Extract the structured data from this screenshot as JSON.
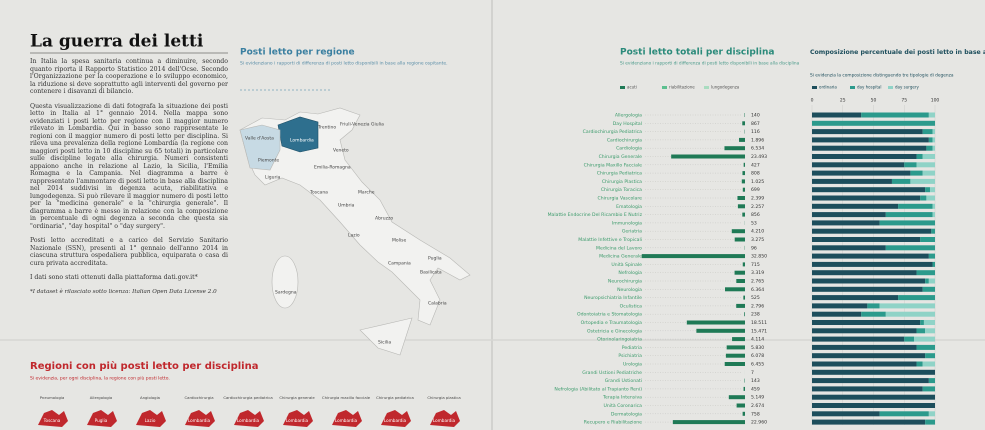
{
  "header": {
    "title": "La guerra dei letti"
  },
  "article": {
    "paragraphs": [
      "In Italia la spesa sanitaria continua a diminuire, secondo quanto riporta il Rapporto Statistico 2014 dell'Ocse. Secondo l'Organizzazione per la cooperazione e lo sviluppo economico, la riduzione si deve soprattutto agli interventi del governo per contenere i disavanzi di bilancio.",
      "Questa visualizzazione di dati fotografa la situazione dei posti letto in Italia al 1° gennaio 2014. Nella mappa sono evidenziati i posti letto per regione con il maggior numero rilevato in Lombardia. Qui in basso sono rappresentate le regioni con il maggior numero di posti letto per disciplina. Si rileva una prevalenza della regione Lombardia (la regione con maggiori posti letto in 10 discipline su 65 totali) in particolare sulle discipline legate alla chirurgia. Numeri consistenti appaiono anche in relazione al Lazio, la Sicilia, l'Emilia Romagna e la Campania. Nel diagramma a barre è rappresentato l'ammontare di posti letto in base alla disciplina nel 2014 suddivisi in degenza acuta, riabilitativa e lungodegenza. Si può rilevare il maggior numero di posti letto per la \"medicina generale\" e la \"chirurgia generale\". Il diagramma a barre è messo in relazione con la composizione in percentuale di ogni degenza a seconda che questa sia \"ordinaria\", \"day hospital\" o \"day surgery\".",
      "Posti letto accreditati e a carico del Servizio Sanitario Nazionale (SSN), presenti al 1° gennaio dell'anno 2014 in ciascuna struttura ospedaliera pubblica, equiparata o casa di cura privata accreditata.",
      "I dati sono stati ottenuti dalla piattaforma dati.gov.it*"
    ],
    "note": "*I dataset è rilasciato sotto licenza: Italian Open Data License 2.0"
  },
  "map": {
    "title": "Posti letto per regione",
    "subtitle": "Si evidenziano i rapporti di differenza di posti letto disponibili in base alla regione ospitante.",
    "regions": [
      "Valle d'Aosta",
      "Piemonte",
      "Lombardia",
      "Liguria",
      "Trentino",
      "Veneto",
      "Friuli-Venezia Giulia",
      "Emilia-Romagna",
      "Toscana",
      "Umbria",
      "Marche",
      "Lazio",
      "Abruzzo",
      "Molise",
      "Campania",
      "Puglia",
      "Basilicata",
      "Calabria",
      "Sicilia",
      "Sardegna"
    ]
  },
  "bottom": {
    "title": "Regioni con più posti letto per disciplina",
    "subtitle": "Si evidenzia, per ogni disciplina, la regione con più posti letto.",
    "items": [
      {
        "discipline": "Pneumologia",
        "region": "Toscana"
      },
      {
        "discipline": "Allergologia",
        "region": "Puglia"
      },
      {
        "discipline": "Angiologia",
        "region": "Lazio"
      },
      {
        "discipline": "Cardiochirurgia",
        "region": "Lombardia"
      },
      {
        "discipline": "Cardiochirurgia pediatrica",
        "region": "Lombardia"
      },
      {
        "discipline": "Chirurgia generale",
        "region": "Lombardia"
      },
      {
        "discipline": "Chirurgia maxillo facciale",
        "region": "Lombardia"
      },
      {
        "discipline": "Chirurgia pediatrica",
        "region": "Lombardia"
      },
      {
        "discipline": "Chirurgia plastica",
        "region": "Lombardia"
      }
    ]
  },
  "chart_data": [
    {
      "type": "hbar",
      "title": "Posti letto totali per disciplina",
      "subtitle": "Si evidenziano i rapporti di differenza di posti letto disponibili in base alla disciplina",
      "legend": [
        {
          "name": "acuti",
          "color": "#1f7a56"
        },
        {
          "name": "riabilitazione",
          "color": "#5cc08f"
        },
        {
          "name": "lungodegenza",
          "color": "#a9dcc0"
        }
      ],
      "color": "#1f7a56",
      "xlim": [
        0,
        35000
      ],
      "categories": [
        "Allergologia",
        "Day Hospital",
        "Cardiochirurgia Pediatrica",
        "Cardiochirurgia",
        "Cardiologia",
        "Chirurgia Generale",
        "Chirurgia Maxillo Facciale",
        "Chirurgia Pediatrica",
        "Chirurgia Plastica",
        "Chirurgia Toracica",
        "Chirurgia Vascolare",
        "Ematologia",
        "Malattie Endocrine Del Ricambio E Nutriz",
        "Immunologia",
        "Geriatria",
        "Malattie Infettive e Tropicali",
        "Medicina del Lavoro",
        "Medicina Generale",
        "Unità Spinale",
        "Nefrologia",
        "Neurochirurgia",
        "Neurologia",
        "Neuropsichiatria Infantile",
        "Oculistica",
        "Odontoiatria e Stomatologia",
        "Ortopedia e Traumatologia",
        "Ostetricia e Ginecologia",
        "Otorinolaringoiatria",
        "Pediatria",
        "Psichiatria",
        "Urologia",
        "Grandi Ustioni Pediatriche",
        "Grandi Ustionati",
        "Nefrologia (Abilitato al Trapianto Reni)",
        "Terapia Intensiva",
        "Unità Coronarica",
        "Dermatologia",
        "Recupero e Riabilitazione"
      ],
      "values": [
        140,
        867,
        116,
        1896,
        6534,
        23493,
        427,
        808,
        1025,
        699,
        2399,
        2257,
        856,
        53,
        4210,
        3275,
        96,
        32850,
        715,
        3319,
        2765,
        6364,
        525,
        2796,
        238,
        18511,
        15471,
        4114,
        5830,
        6078,
        6455,
        7,
        143,
        459,
        5149,
        2674,
        758,
        22960
      ],
      "value_labels": [
        "140",
        "867",
        "116",
        "1.896",
        "6.534",
        "23.493",
        "427",
        "808",
        "1.025",
        "699",
        "2.399",
        "2.257",
        "856",
        "53",
        "4.210",
        "3.275",
        "96",
        "32.850",
        "715",
        "3.319",
        "2.765",
        "6.364",
        "525",
        "2.796",
        "238",
        "18.511",
        "15.471",
        "4.114",
        "5.830",
        "6.078",
        "6.455",
        "7",
        "143",
        "459",
        "5.149",
        "2.674",
        "758",
        "22.960"
      ]
    },
    {
      "type": "stacked_hbar",
      "title": "Composizione percentuale dei posti letto in base alla degenza",
      "subtitle": "Si evidenzia la composizione distinguendo tre tipologie di degenza",
      "xlim": [
        0,
        100
      ],
      "xticks": [
        0,
        25,
        50,
        75,
        100
      ],
      "series": [
        {
          "name": "ordinaria",
          "color": "#1d4e5c",
          "values": [
            40,
            0,
            90,
            95,
            93,
            85,
            75,
            80,
            65,
            92,
            88,
            70,
            60,
            55,
            97,
            88,
            60,
            95,
            98,
            85,
            92,
            90,
            70,
            45,
            40,
            88,
            85,
            75,
            85,
            92,
            85,
            100,
            95,
            90,
            100,
            100,
            55,
            92
          ]
        },
        {
          "name": "day hospital",
          "color": "#2b9a8c",
          "values": [
            55,
            100,
            8,
            3,
            5,
            5,
            10,
            10,
            15,
            4,
            5,
            28,
            38,
            45,
            3,
            12,
            40,
            5,
            2,
            15,
            3,
            10,
            30,
            10,
            20,
            3,
            7,
            8,
            15,
            8,
            5,
            0,
            5,
            10,
            0,
            0,
            40,
            8
          ]
        },
        {
          "name": "day surgery",
          "color": "#8fd3c7",
          "values": [
            5,
            0,
            2,
            2,
            2,
            10,
            15,
            10,
            20,
            4,
            7,
            2,
            2,
            0,
            0,
            0,
            0,
            0,
            0,
            0,
            5,
            0,
            0,
            45,
            40,
            9,
            8,
            17,
            0,
            0,
            10,
            0,
            0,
            0,
            0,
            0,
            5,
            0
          ]
        }
      ]
    }
  ]
}
